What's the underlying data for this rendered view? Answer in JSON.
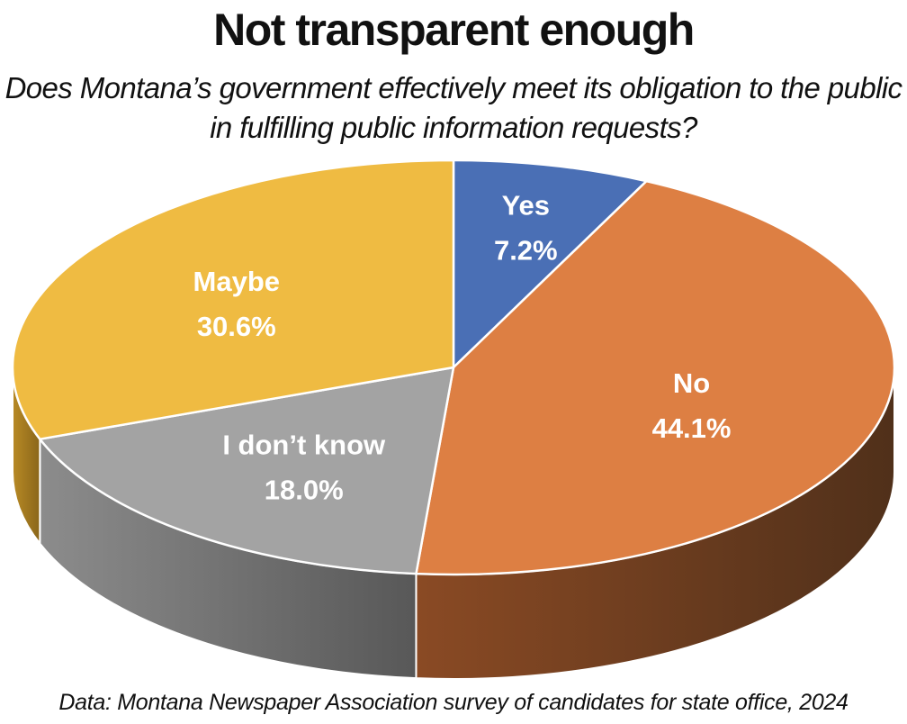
{
  "chart_data": {
    "type": "pie",
    "title": "Not transparent enough",
    "subtitle": "Does Montana’s government effectively meet its obligation to the public in fulfilling public information requests?",
    "source": "Data: Montana Newspaper Association survey of candidates for state office, 2024",
    "slices": [
      {
        "label": "Yes",
        "value": 7.2,
        "value_label": "7.2%",
        "color": "#4a6fb5"
      },
      {
        "label": "No",
        "value": 44.1,
        "value_label": "44.1%",
        "color": "#dd7f43"
      },
      {
        "label": "I don’t know",
        "value": 18.0,
        "value_label": "18.0%",
        "color": "#a3a3a3"
      },
      {
        "label": "Maybe",
        "value": 30.6,
        "value_label": "30.6%",
        "color": "#efbb42"
      }
    ]
  }
}
